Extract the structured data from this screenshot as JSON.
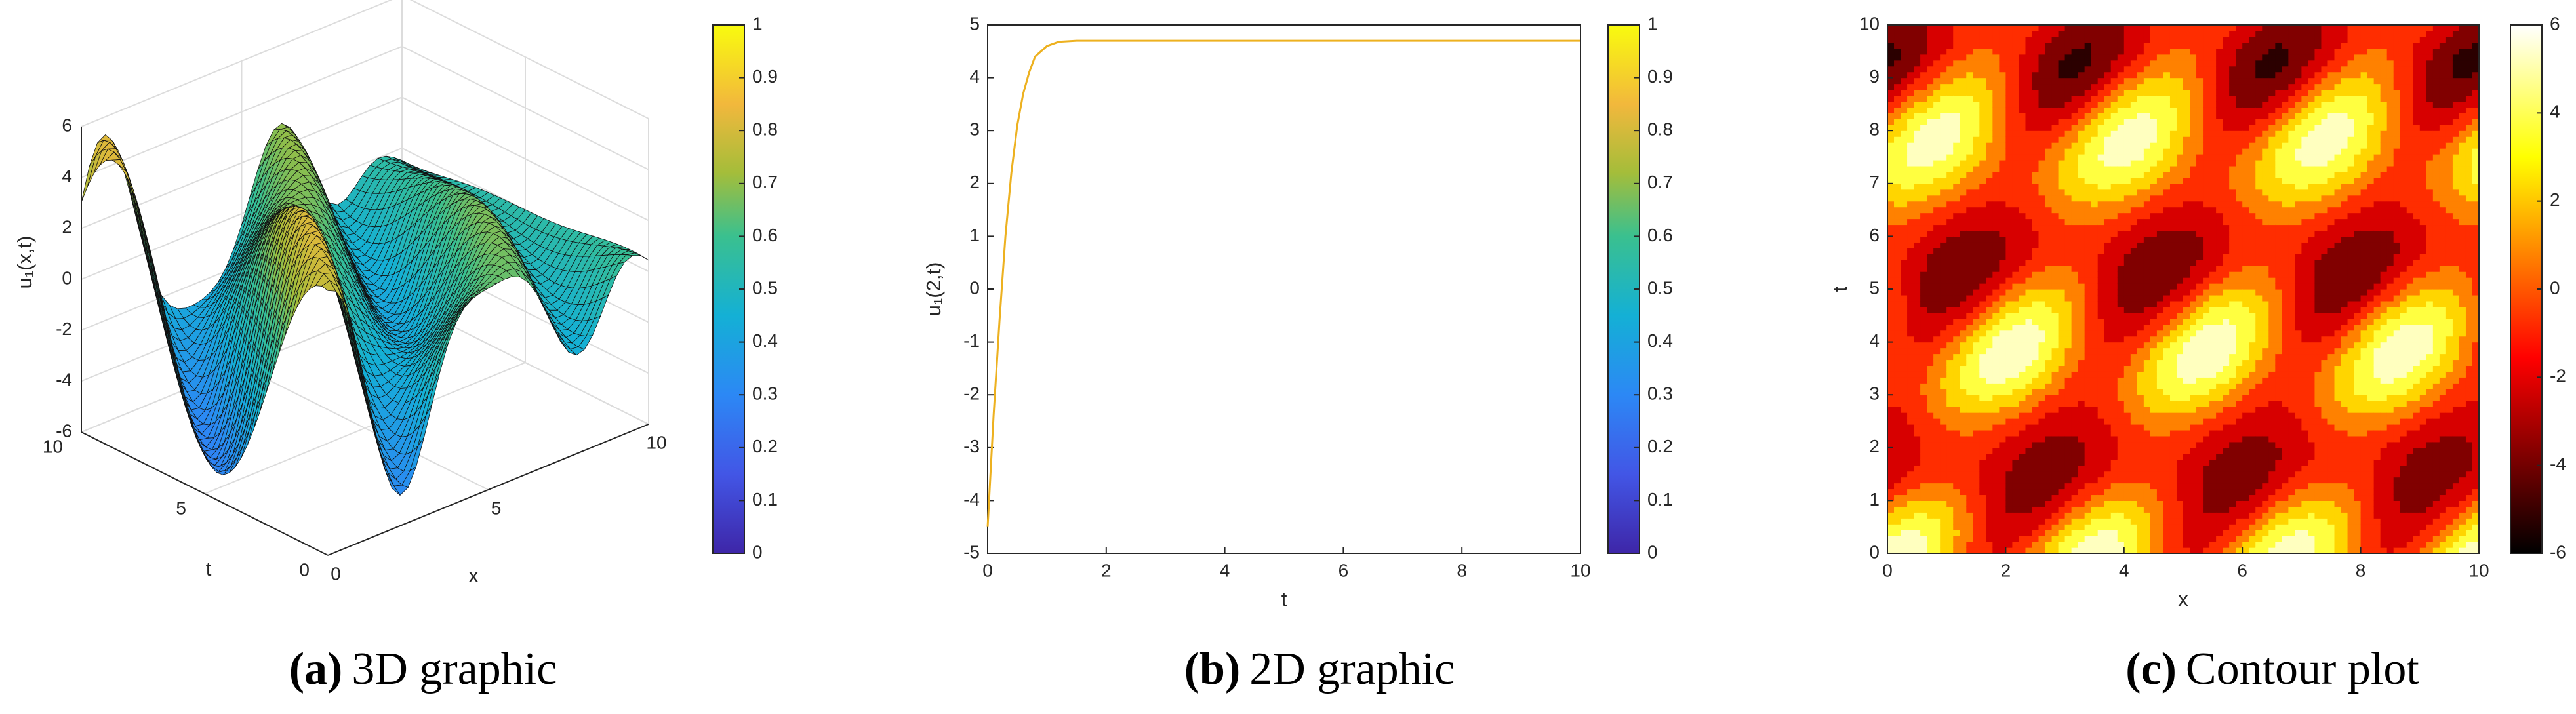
{
  "chart_data": [
    {
      "type": "surface3d",
      "caption_label": "(a)",
      "caption": "3D graphic",
      "xlabel": "x",
      "ylabel": "t",
      "zlabel": "u₁(x,t)",
      "xlim": [
        0,
        10
      ],
      "xticks": [
        0,
        5,
        10
      ],
      "ylim": [
        0,
        10
      ],
      "yticks": [
        0,
        5,
        10
      ],
      "zlim": [
        -6,
        6
      ],
      "zticks": [
        -6,
        -4,
        -2,
        0,
        2,
        4,
        6
      ],
      "grid": true,
      "colorbar": {
        "colormap": "parula",
        "lim": [
          0,
          1
        ],
        "ticks": [
          0,
          0.1,
          0.2,
          0.3,
          0.4,
          0.5,
          0.6,
          0.7,
          0.8,
          0.9,
          1
        ]
      }
    },
    {
      "type": "line",
      "caption_label": "(b)",
      "caption": "2D graphic",
      "xlabel": "t",
      "ylabel": "u₁(2,t)",
      "color": "#EDB120",
      "x": [
        0,
        0.1,
        0.2,
        0.3,
        0.4,
        0.5,
        0.6,
        0.7,
        0.8,
        1,
        1.2,
        1.5,
        2,
        4,
        6,
        8,
        10
      ],
      "values": [
        -4.5,
        -2.4,
        -0.6,
        1,
        2.2,
        3.1,
        3.7,
        4.1,
        4.4,
        4.6,
        4.68,
        4.7,
        4.7,
        4.7,
        4.7,
        4.7,
        4.7
      ],
      "xlim": [
        0,
        10
      ],
      "xticks": [
        0,
        2,
        4,
        6,
        8,
        10
      ],
      "ylim": [
        -5,
        5
      ],
      "yticks": [
        -5,
        -4,
        -3,
        -2,
        -1,
        0,
        1,
        2,
        3,
        4,
        5
      ],
      "colorbar": {
        "colormap": "parula",
        "lim": [
          0,
          1
        ],
        "ticks": [
          0,
          0.1,
          0.2,
          0.3,
          0.4,
          0.5,
          0.6,
          0.7,
          0.8,
          0.9,
          1
        ]
      }
    },
    {
      "type": "contour",
      "caption_label": "(c)",
      "caption": "Contour plot",
      "xlabel": "x",
      "ylabel": "t",
      "xlim": [
        0,
        10
      ],
      "xticks": [
        0,
        2,
        4,
        6,
        8,
        10
      ],
      "ylim": [
        0,
        10
      ],
      "yticks": [
        0,
        1,
        2,
        3,
        4,
        5,
        6,
        7,
        8,
        9,
        10
      ],
      "colorbar": {
        "colormap": "hot",
        "lim": [
          -6,
          6
        ],
        "ticks": [
          -6,
          -4,
          -2,
          0,
          2,
          4,
          6
        ]
      }
    }
  ]
}
